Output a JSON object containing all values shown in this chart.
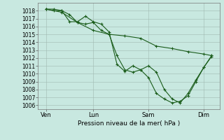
{
  "xlabel": "Pression niveau de la mer( hPa )",
  "bg_color": "#c8e8e0",
  "grid_color": "#a0b8b0",
  "line_color": "#1a5c1a",
  "ylim": [
    1005.5,
    1019.0
  ],
  "yticks": [
    1006,
    1007,
    1008,
    1009,
    1010,
    1011,
    1012,
    1013,
    1014,
    1015,
    1016,
    1017,
    1018
  ],
  "xtick_labels": [
    "Ven",
    "Lun",
    "Sam",
    "Dim"
  ],
  "xtick_positions": [
    0.5,
    3.5,
    7.0,
    10.5
  ],
  "xlim": [
    0,
    11.5
  ],
  "series1_x": [
    0.5,
    1.0,
    1.5,
    2.0,
    2.5,
    3.0,
    3.5,
    4.0,
    4.5,
    5.0,
    5.5,
    6.0,
    6.5,
    7.0,
    7.5,
    8.0,
    8.5,
    9.0,
    9.5,
    10.0,
    10.5,
    11.0
  ],
  "series1_y": [
    1018.2,
    1018.0,
    1018.0,
    1017.5,
    1016.5,
    1016.3,
    1016.5,
    1015.5,
    1015.0,
    1012.3,
    1010.5,
    1010.2,
    1010.5,
    1011.0,
    1010.2,
    1008.0,
    1006.8,
    1006.3,
    1007.5,
    1009.2,
    1010.8,
    1012.3
  ],
  "series2_x": [
    0.5,
    1.0,
    1.5,
    2.0,
    2.5,
    3.0,
    3.5,
    4.0,
    4.5,
    5.0,
    5.5,
    6.0,
    6.5,
    7.0,
    7.5,
    8.0,
    8.5,
    9.0,
    9.5,
    10.0,
    10.5,
    11.0
  ],
  "series2_y": [
    1018.2,
    1018.2,
    1018.0,
    1016.6,
    1016.6,
    1017.3,
    1016.6,
    1016.3,
    1015.3,
    1011.2,
    1010.3,
    1011.0,
    1010.5,
    1009.5,
    1007.5,
    1006.8,
    1006.3,
    1006.5,
    1007.2,
    1009.0,
    1010.8,
    1012.2
  ],
  "series3_x": [
    0.5,
    1.5,
    2.5,
    3.5,
    4.5,
    5.5,
    6.5,
    7.5,
    8.5,
    9.5,
    10.5,
    11.0
  ],
  "series3_y": [
    1018.2,
    1017.8,
    1016.5,
    1015.5,
    1015.0,
    1014.8,
    1014.5,
    1013.5,
    1013.2,
    1012.8,
    1012.5,
    1012.3
  ]
}
